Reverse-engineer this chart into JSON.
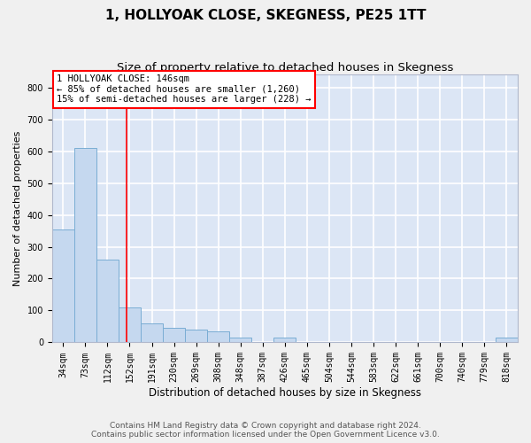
{
  "title": "1, HOLLYOAK CLOSE, SKEGNESS, PE25 1TT",
  "subtitle": "Size of property relative to detached houses in Skegness",
  "xlabel": "Distribution of detached houses by size in Skegness",
  "ylabel": "Number of detached properties",
  "bar_labels": [
    "34sqm",
    "73sqm",
    "112sqm",
    "152sqm",
    "191sqm",
    "230sqm",
    "269sqm",
    "308sqm",
    "348sqm",
    "387sqm",
    "426sqm",
    "465sqm",
    "504sqm",
    "544sqm",
    "583sqm",
    "622sqm",
    "661sqm",
    "700sqm",
    "740sqm",
    "779sqm",
    "818sqm"
  ],
  "bar_values": [
    355,
    610,
    260,
    110,
    60,
    45,
    40,
    35,
    15,
    0,
    15,
    0,
    0,
    0,
    0,
    0,
    0,
    0,
    0,
    0,
    15
  ],
  "bar_color": "#c5d8ef",
  "bar_edge_color": "#7aadd4",
  "bar_linewidth": 0.7,
  "background_color": "#dce6f5",
  "grid_color": "#ffffff",
  "ylim": [
    0,
    840
  ],
  "yticks": [
    0,
    100,
    200,
    300,
    400,
    500,
    600,
    700,
    800
  ],
  "annotation_text": "1 HOLLYOAK CLOSE: 146sqm\n← 85% of detached houses are smaller (1,260)\n15% of semi-detached houses are larger (228) →",
  "footer_line1": "Contains HM Land Registry data © Crown copyright and database right 2024.",
  "footer_line2": "Contains public sector information licensed under the Open Government Licence v3.0.",
  "title_fontsize": 11,
  "subtitle_fontsize": 9.5,
  "annotation_fontsize": 7.5,
  "tick_fontsize": 7,
  "xlabel_fontsize": 8.5,
  "ylabel_fontsize": 8,
  "footer_fontsize": 6.5
}
